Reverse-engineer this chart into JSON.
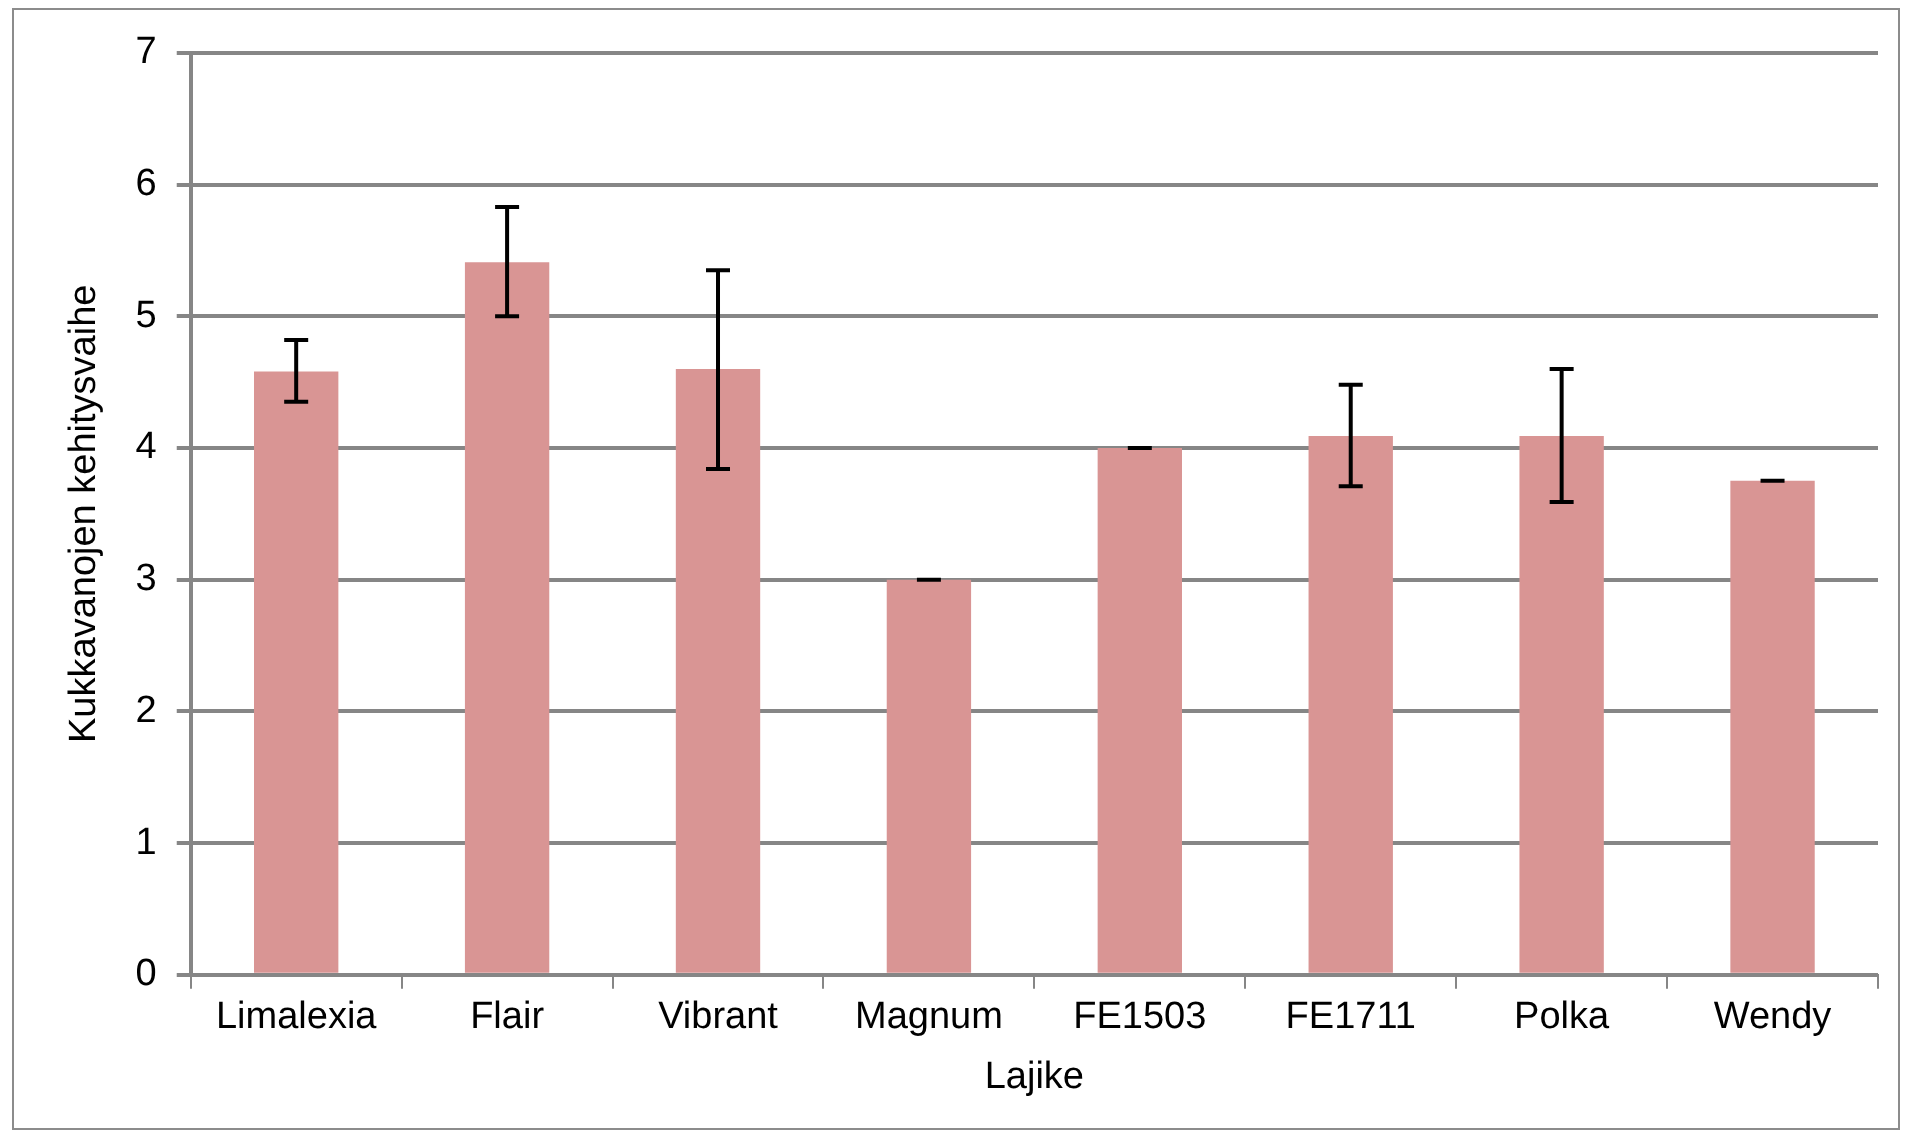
{
  "chart_data": {
    "type": "bar",
    "xlabel": "Lajike",
    "ylabel": "Kukkavanojen kehitysvaihe",
    "categories": [
      "Limalexia",
      "Flair",
      "Vibrant",
      "Magnum",
      "FE1503",
      "FE1711",
      "Polka",
      "Wendy"
    ],
    "values": [
      4.58,
      5.41,
      4.6,
      3.0,
      4.0,
      4.09,
      4.09,
      3.75
    ],
    "errors": [
      [
        4.35,
        4.82
      ],
      [
        5.0,
        5.83
      ],
      [
        3.84,
        5.35
      ],
      [
        3.0,
        3.0
      ],
      [
        4.0,
        4.0
      ],
      [
        3.71,
        4.48
      ],
      [
        3.59,
        4.6
      ],
      [
        3.75,
        3.75
      ]
    ],
    "color": "#d99594",
    "ylim": [
      0,
      7
    ],
    "yticks": [
      0,
      1,
      2,
      3,
      4,
      5,
      6,
      7
    ],
    "grid": "y",
    "legend": false
  }
}
